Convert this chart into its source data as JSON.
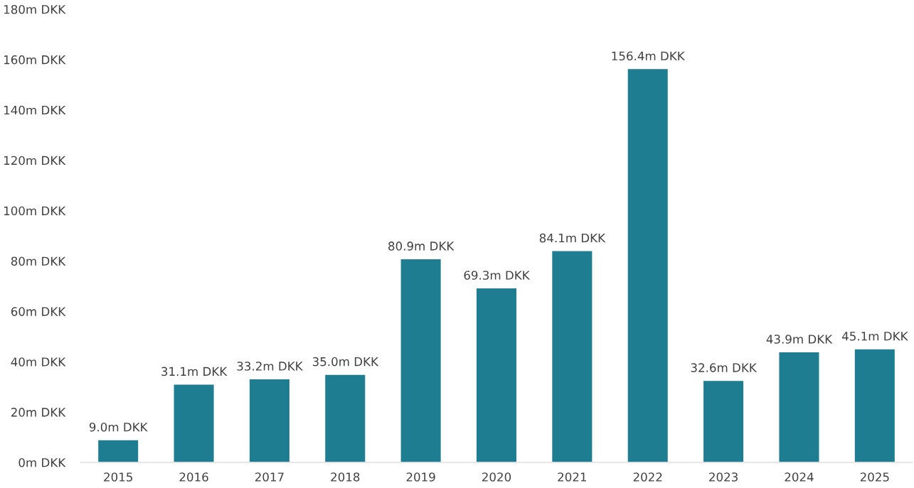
{
  "chart_data": {
    "type": "bar",
    "categories": [
      "2015",
      "2016",
      "2017",
      "2018",
      "2019",
      "2020",
      "2021",
      "2022",
      "2023",
      "2024",
      "2025"
    ],
    "values": [
      9.0,
      31.1,
      33.2,
      35.0,
      80.9,
      69.3,
      84.1,
      156.4,
      32.6,
      43.9,
      45.1
    ],
    "value_labels": [
      "9.0m DKK",
      "31.1m DKK",
      "33.2m DKK",
      "35.0m DKK",
      "80.9m DKK",
      "69.3m DKK",
      "84.1m DKK",
      "156.4m DKK",
      "32.6m DKK",
      "43.9m DKK",
      "45.1m DKK"
    ],
    "color": "#1f7d91",
    "ylim": [
      0,
      180
    ],
    "yticks": [
      {
        "value": 0,
        "label": "0m DKK"
      },
      {
        "value": 20,
        "label": "20m DKK"
      },
      {
        "value": 40,
        "label": "40m DKK"
      },
      {
        "value": 60,
        "label": "60m DKK"
      },
      {
        "value": 80,
        "label": "80m DKK"
      },
      {
        "value": 100,
        "label": "100m DKK"
      },
      {
        "value": 120,
        "label": "120m DKK"
      },
      {
        "value": 140,
        "label": "140m DKK"
      },
      {
        "value": 160,
        "label": "160m DKK"
      },
      {
        "value": 180,
        "label": "180m DKK"
      }
    ],
    "grid": false,
    "legend": false
  }
}
